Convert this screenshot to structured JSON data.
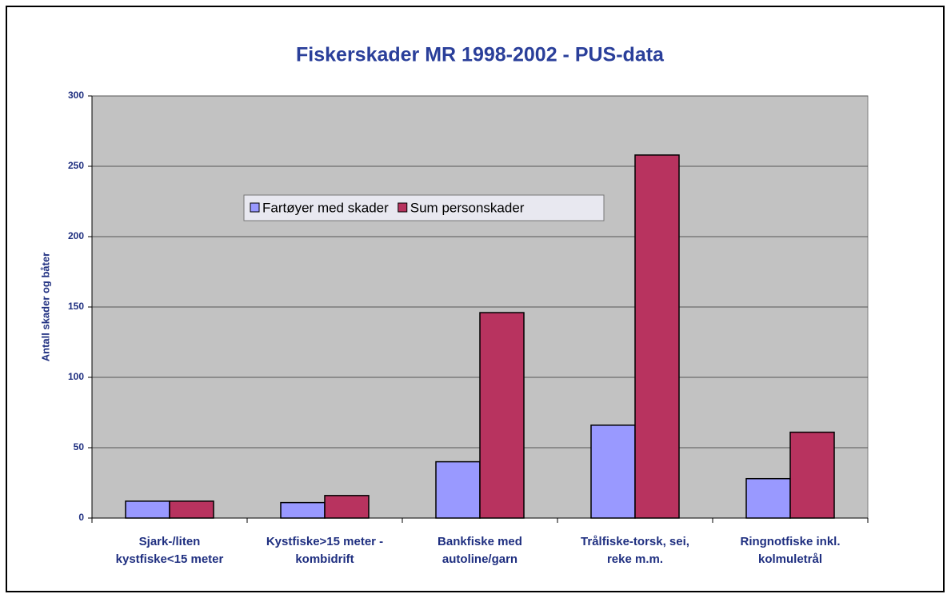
{
  "chart_data": {
    "type": "bar",
    "title": "Fiskerskader MR 1998-2002 - PUS-data",
    "y_label": "Antall skader og båter",
    "categories": [
      [
        "Sjark-/liten",
        "kystfiske<15 meter"
      ],
      [
        "Kystfiske>15 meter -",
        "kombidrift"
      ],
      [
        "Bankfiske med",
        "autoline/garn"
      ],
      [
        "Trålfiske-torsk, sei,",
        "reke m.m."
      ],
      [
        "Ringnotfiske inkl.",
        "kolmuletrål"
      ]
    ],
    "series": [
      {
        "name": "Fartøyer med skader",
        "color": "#9999ff",
        "values": [
          12,
          11,
          40,
          66,
          28
        ]
      },
      {
        "name": "Sum personskader",
        "color": "#b8335f",
        "values": [
          12,
          16,
          146,
          258,
          61
        ]
      }
    ],
    "ylim": [
      0,
      300
    ],
    "yticks": [
      0,
      50,
      100,
      150,
      200,
      250,
      300
    ],
    "grid": true,
    "legend": "top-left"
  }
}
